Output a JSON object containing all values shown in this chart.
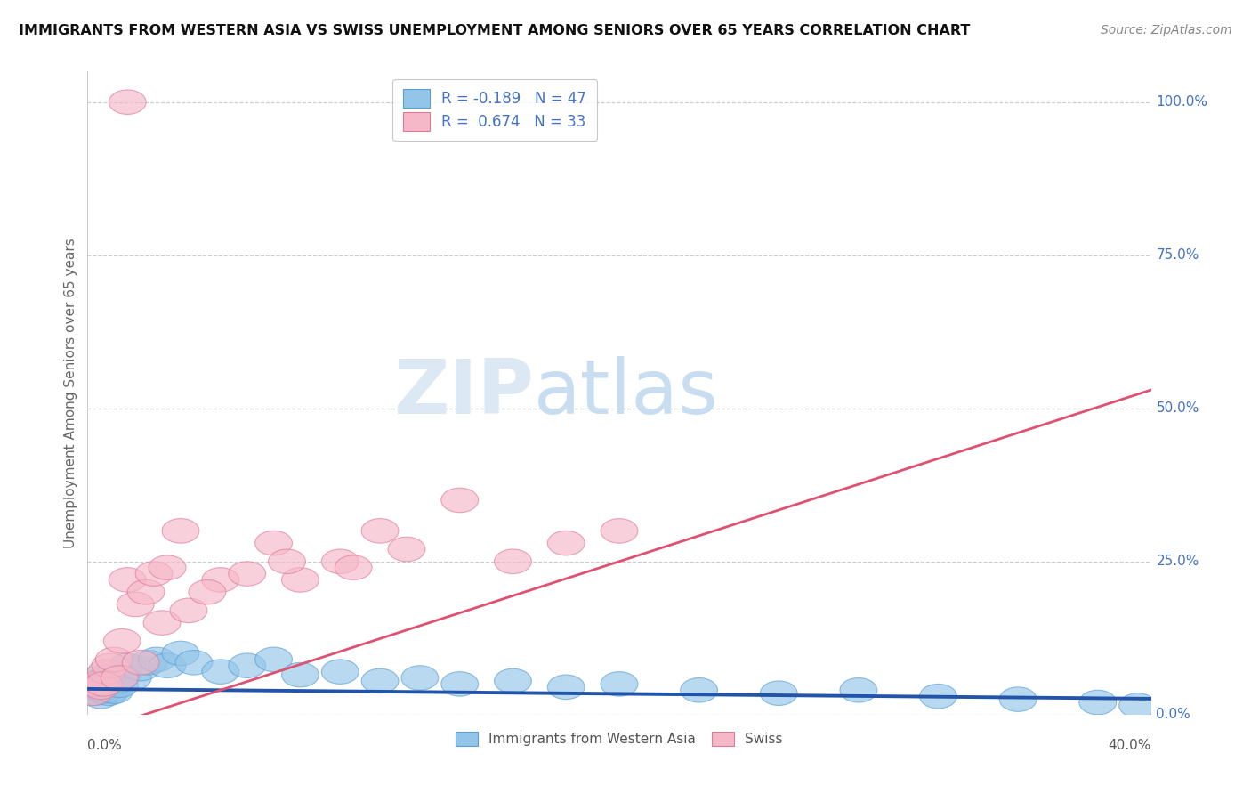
{
  "title": "IMMIGRANTS FROM WESTERN ASIA VS SWISS UNEMPLOYMENT AMONG SENIORS OVER 65 YEARS CORRELATION CHART",
  "source": "Source: ZipAtlas.com",
  "ylabel": "Unemployment Among Seniors over 65 years",
  "watermark_zip": "ZIP",
  "watermark_atlas": "atlas",
  "legend_blue_label": "Immigrants from Western Asia",
  "legend_pink_label": "Swiss",
  "R_blue": -0.189,
  "N_blue": 47,
  "R_pink": 0.674,
  "N_pink": 33,
  "xlim": [
    0.0,
    40.0
  ],
  "ylim": [
    0.0,
    105.0
  ],
  "right_ytick_vals": [
    0.0,
    25.0,
    50.0,
    75.0,
    100.0
  ],
  "right_ytick_labels": [
    "0.0%",
    "25.0%",
    "50.0%",
    "75.0%",
    "100.0%"
  ],
  "blue_color": "#92c5e8",
  "blue_edge_color": "#5a9fd4",
  "pink_color": "#f5b8c8",
  "pink_edge_color": "#e07898",
  "blue_line_color": "#2255aa",
  "pink_line_color": "#e05070",
  "grid_color": "#cccccc",
  "background_color": "#ffffff",
  "blue_slope": -0.04,
  "blue_intercept": 4.2,
  "pink_slope": 1.4,
  "pink_intercept": -3.0,
  "blue_points_x": [
    0.15,
    0.2,
    0.25,
    0.3,
    0.35,
    0.4,
    0.45,
    0.5,
    0.55,
    0.6,
    0.65,
    0.7,
    0.75,
    0.8,
    0.85,
    0.9,
    0.95,
    1.0,
    1.1,
    1.2,
    1.3,
    1.5,
    1.7,
    2.0,
    2.3,
    2.6,
    3.0,
    3.5,
    4.0,
    5.0,
    6.0,
    7.0,
    8.0,
    9.5,
    11.0,
    12.5,
    14.0,
    16.0,
    18.0,
    20.0,
    23.0,
    26.0,
    29.0,
    32.0,
    35.0,
    38.0,
    39.5
  ],
  "blue_points_y": [
    4.5,
    3.8,
    5.2,
    3.5,
    4.8,
    4.2,
    6.0,
    3.0,
    5.5,
    4.0,
    3.8,
    5.8,
    4.5,
    3.5,
    6.2,
    4.0,
    5.0,
    3.8,
    5.5,
    4.8,
    6.5,
    8.0,
    6.0,
    7.5,
    8.5,
    9.0,
    8.0,
    10.0,
    8.5,
    7.0,
    8.0,
    9.0,
    6.5,
    7.0,
    5.5,
    6.0,
    5.0,
    5.5,
    4.5,
    5.0,
    4.0,
    3.5,
    4.0,
    3.0,
    2.5,
    2.0,
    1.5
  ],
  "pink_points_x": [
    0.2,
    0.35,
    0.5,
    0.7,
    0.85,
    1.0,
    1.3,
    1.5,
    1.8,
    2.2,
    2.5,
    3.0,
    3.5,
    5.0,
    7.0,
    8.0,
    9.5,
    11.0,
    14.0,
    0.6,
    1.2,
    2.0,
    2.8,
    3.8,
    4.5,
    6.0,
    7.5,
    10.0,
    12.0,
    16.0,
    18.0,
    20.0,
    1.5
  ],
  "pink_points_y": [
    3.5,
    5.0,
    4.5,
    7.0,
    8.0,
    9.0,
    12.0,
    22.0,
    18.0,
    20.0,
    23.0,
    24.0,
    30.0,
    22.0,
    28.0,
    22.0,
    25.0,
    30.0,
    35.0,
    5.0,
    6.0,
    8.5,
    15.0,
    17.0,
    20.0,
    23.0,
    25.0,
    24.0,
    27.0,
    25.0,
    28.0,
    30.0,
    100.0
  ]
}
